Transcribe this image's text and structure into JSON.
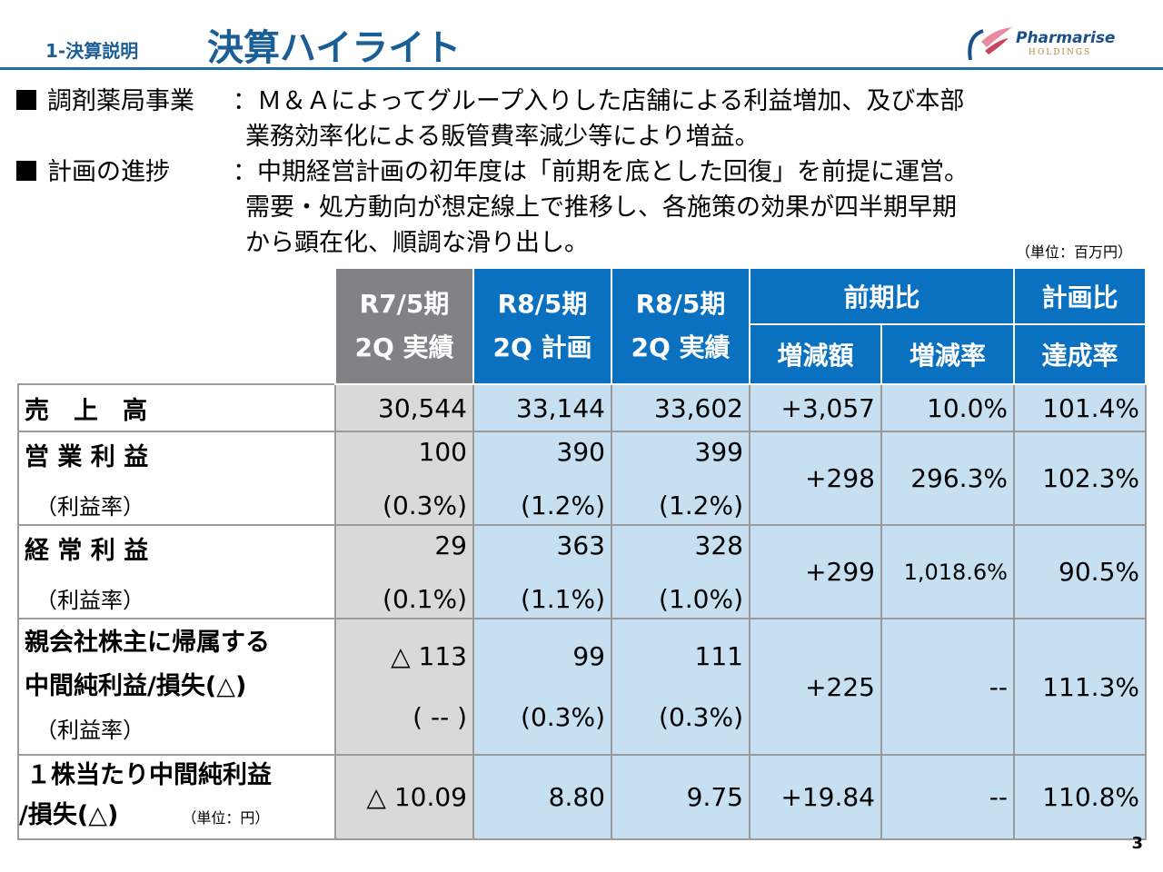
{
  "header": {
    "section": "1-決算説明",
    "title": "決算ハイライト",
    "logo_text": "Pharmarise",
    "logo_sub": "HOLDINGS"
  },
  "bullets": [
    {
      "label": "調剤薬局事業",
      "lines": [
        "：Ｍ＆Ａによってグループ入りした店舗による利益増加、及び本部",
        "業務効率化による販管費率減少等により増益。"
      ]
    },
    {
      "label": "計画の進捗",
      "lines": [
        "：中期経営計画の初年度は「前期を底とした回復」を前提に運営。",
        "需要・処方動向が想定線上で推移し、各施策の効果が四半期早期",
        "から顕在化、順調な滑り出し。"
      ]
    }
  ],
  "unit": "（単位：百万円）",
  "table": {
    "headers": {
      "c1": [
        "R7/5期",
        "2Q 実績"
      ],
      "c2": [
        "R8/5期",
        "2Q 計画"
      ],
      "c3": [
        "R8/5期",
        "2Q 実績"
      ],
      "yoy": "前期比",
      "plan": "計画比",
      "diff": "増減額",
      "rate": "増減率",
      "ach": "達成率"
    },
    "rows": [
      {
        "label": "売　上　高",
        "v": [
          "30,544",
          "33,144",
          "33,602"
        ],
        "diff": "+3,057",
        "rate": "10.0%",
        "ach": "101.4%"
      },
      {
        "label": "営 業 利 益",
        "sub": "（利益率）",
        "v": [
          "100",
          "390",
          "399"
        ],
        "r": [
          "(0.3%)",
          "(1.2%)",
          "(1.2%)"
        ],
        "diff": "+298",
        "rate": "296.3%",
        "ach": "102.3%"
      },
      {
        "label": "経 常 利 益",
        "sub": "（利益率）",
        "v": [
          "29",
          "363",
          "328"
        ],
        "r": [
          "(0.1%)",
          "(1.1%)",
          "(1.0%)"
        ],
        "diff": "+299",
        "rate": "1,018.6%",
        "ach": "90.5%"
      },
      {
        "label": "親会社株主に帰属する",
        "label2": "中間純利益/損失(△)",
        "sub": "（利益率）",
        "v": [
          "△ 113",
          "99",
          "111"
        ],
        "r": [
          "( -- )",
          "(0.3%)",
          "(0.3%)"
        ],
        "diff": "+225",
        "rate": "--",
        "ach": "111.3%"
      },
      {
        "label": "１株当たり中間純利益",
        "label2": "/損失(△)",
        "sub": "（単位：円）",
        "v": [
          "△ 10.09",
          "8.80",
          "9.75"
        ],
        "diff": "+19.84",
        "rate": "--",
        "ach": "110.8%"
      }
    ]
  },
  "page": "3"
}
